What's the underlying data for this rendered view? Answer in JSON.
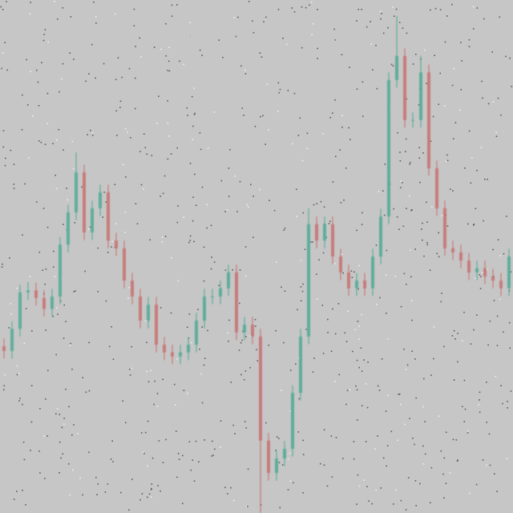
{
  "chart_data": {
    "type": "candlestick",
    "open": [
      32.5,
      31.6,
      35.9,
      43.0,
      43.4,
      41.9,
      39.8,
      42.2,
      52.3,
      58.6,
      66.4,
      54.7,
      59.4,
      62.5,
      53.1,
      51.6,
      45.3,
      42.2,
      37.5,
      40.6,
      32.8,
      31.3,
      30.5,
      31.3,
      32.8,
      37.5,
      42.2,
      42.2,
      43.8,
      46.9,
      35.2,
      36.7,
      34.4,
      14.1,
      7.8,
      10.6,
      12.5,
      23.4,
      34.4,
      56.3,
      53.1,
      56.3,
      50.0,
      46.9,
      43.8,
      45.3,
      43.8,
      50.0,
      57.8,
      84.4,
      89.1,
      76.6,
      76.6,
      85.9,
      67.2,
      59.4,
      51.6,
      50.8,
      49.2,
      46.9,
      47.7,
      46.1,
      45.3,
      43.8
    ],
    "high": [
      34.0,
      37.4,
      44.5,
      45.0,
      44.9,
      43.4,
      43.7,
      53.8,
      60.1,
      70.3,
      67.9,
      60.9,
      64.0,
      64.0,
      54.6,
      53.1,
      46.8,
      43.7,
      42.1,
      42.1,
      34.3,
      32.8,
      32.8,
      34.3,
      39.0,
      43.7,
      43.7,
      45.3,
      48.4,
      48.4,
      38.2,
      38.2,
      35.9,
      15.6,
      12.1,
      14.0,
      24.9,
      35.9,
      59.4,
      57.8,
      57.8,
      57.8,
      51.5,
      48.4,
      46.8,
      46.8,
      51.5,
      59.3,
      85.9,
      96.9,
      90.6,
      78.1,
      89.1,
      87.4,
      68.7,
      60.9,
      53.1,
      52.3,
      50.7,
      49.2,
      49.2,
      47.6,
      46.8,
      51.5
    ],
    "low": [
      30.1,
      30.1,
      34.4,
      41.5,
      40.4,
      38.3,
      38.3,
      40.7,
      50.8,
      57.1,
      53.2,
      53.2,
      57.9,
      51.6,
      50.1,
      43.8,
      40.7,
      36.0,
      36.0,
      31.3,
      29.8,
      29.0,
      29.0,
      29.8,
      31.3,
      36.0,
      40.7,
      40.7,
      42.3,
      33.7,
      33.7,
      32.9,
      0,
      6.3,
      6.3,
      9.1,
      11.0,
      21.9,
      32.9,
      51.6,
      51.6,
      48.5,
      45.4,
      42.3,
      42.3,
      42.3,
      42.3,
      48.5,
      56.3,
      82.9,
      75.1,
      75.1,
      75.1,
      65.7,
      57.9,
      50.1,
      49.3,
      47.7,
      45.4,
      45.4,
      44.6,
      43.8,
      42.3,
      42.3
    ],
    "close": [
      31.6,
      35.9,
      43.0,
      43.4,
      41.9,
      39.8,
      42.2,
      52.3,
      58.6,
      66.4,
      54.7,
      59.4,
      62.5,
      53.1,
      51.6,
      45.3,
      42.2,
      37.5,
      40.6,
      32.8,
      31.3,
      30.5,
      31.3,
      32.8,
      37.5,
      42.2,
      42.2,
      43.8,
      46.9,
      35.2,
      36.7,
      34.4,
      14.1,
      7.8,
      10.6,
      12.5,
      23.4,
      34.4,
      56.3,
      53.1,
      56.3,
      50.0,
      46.9,
      43.8,
      45.3,
      43.8,
      50.0,
      57.8,
      84.4,
      89.1,
      76.6,
      76.6,
      85.9,
      67.2,
      59.4,
      51.6,
      50.8,
      49.2,
      46.9,
      47.7,
      46.1,
      45.3,
      43.8,
      50.0
    ],
    "ylim": [
      0,
      100
    ],
    "up_color": "#5fae9a",
    "down_color": "#c87b7b",
    "background": "#c6c6c6"
  }
}
